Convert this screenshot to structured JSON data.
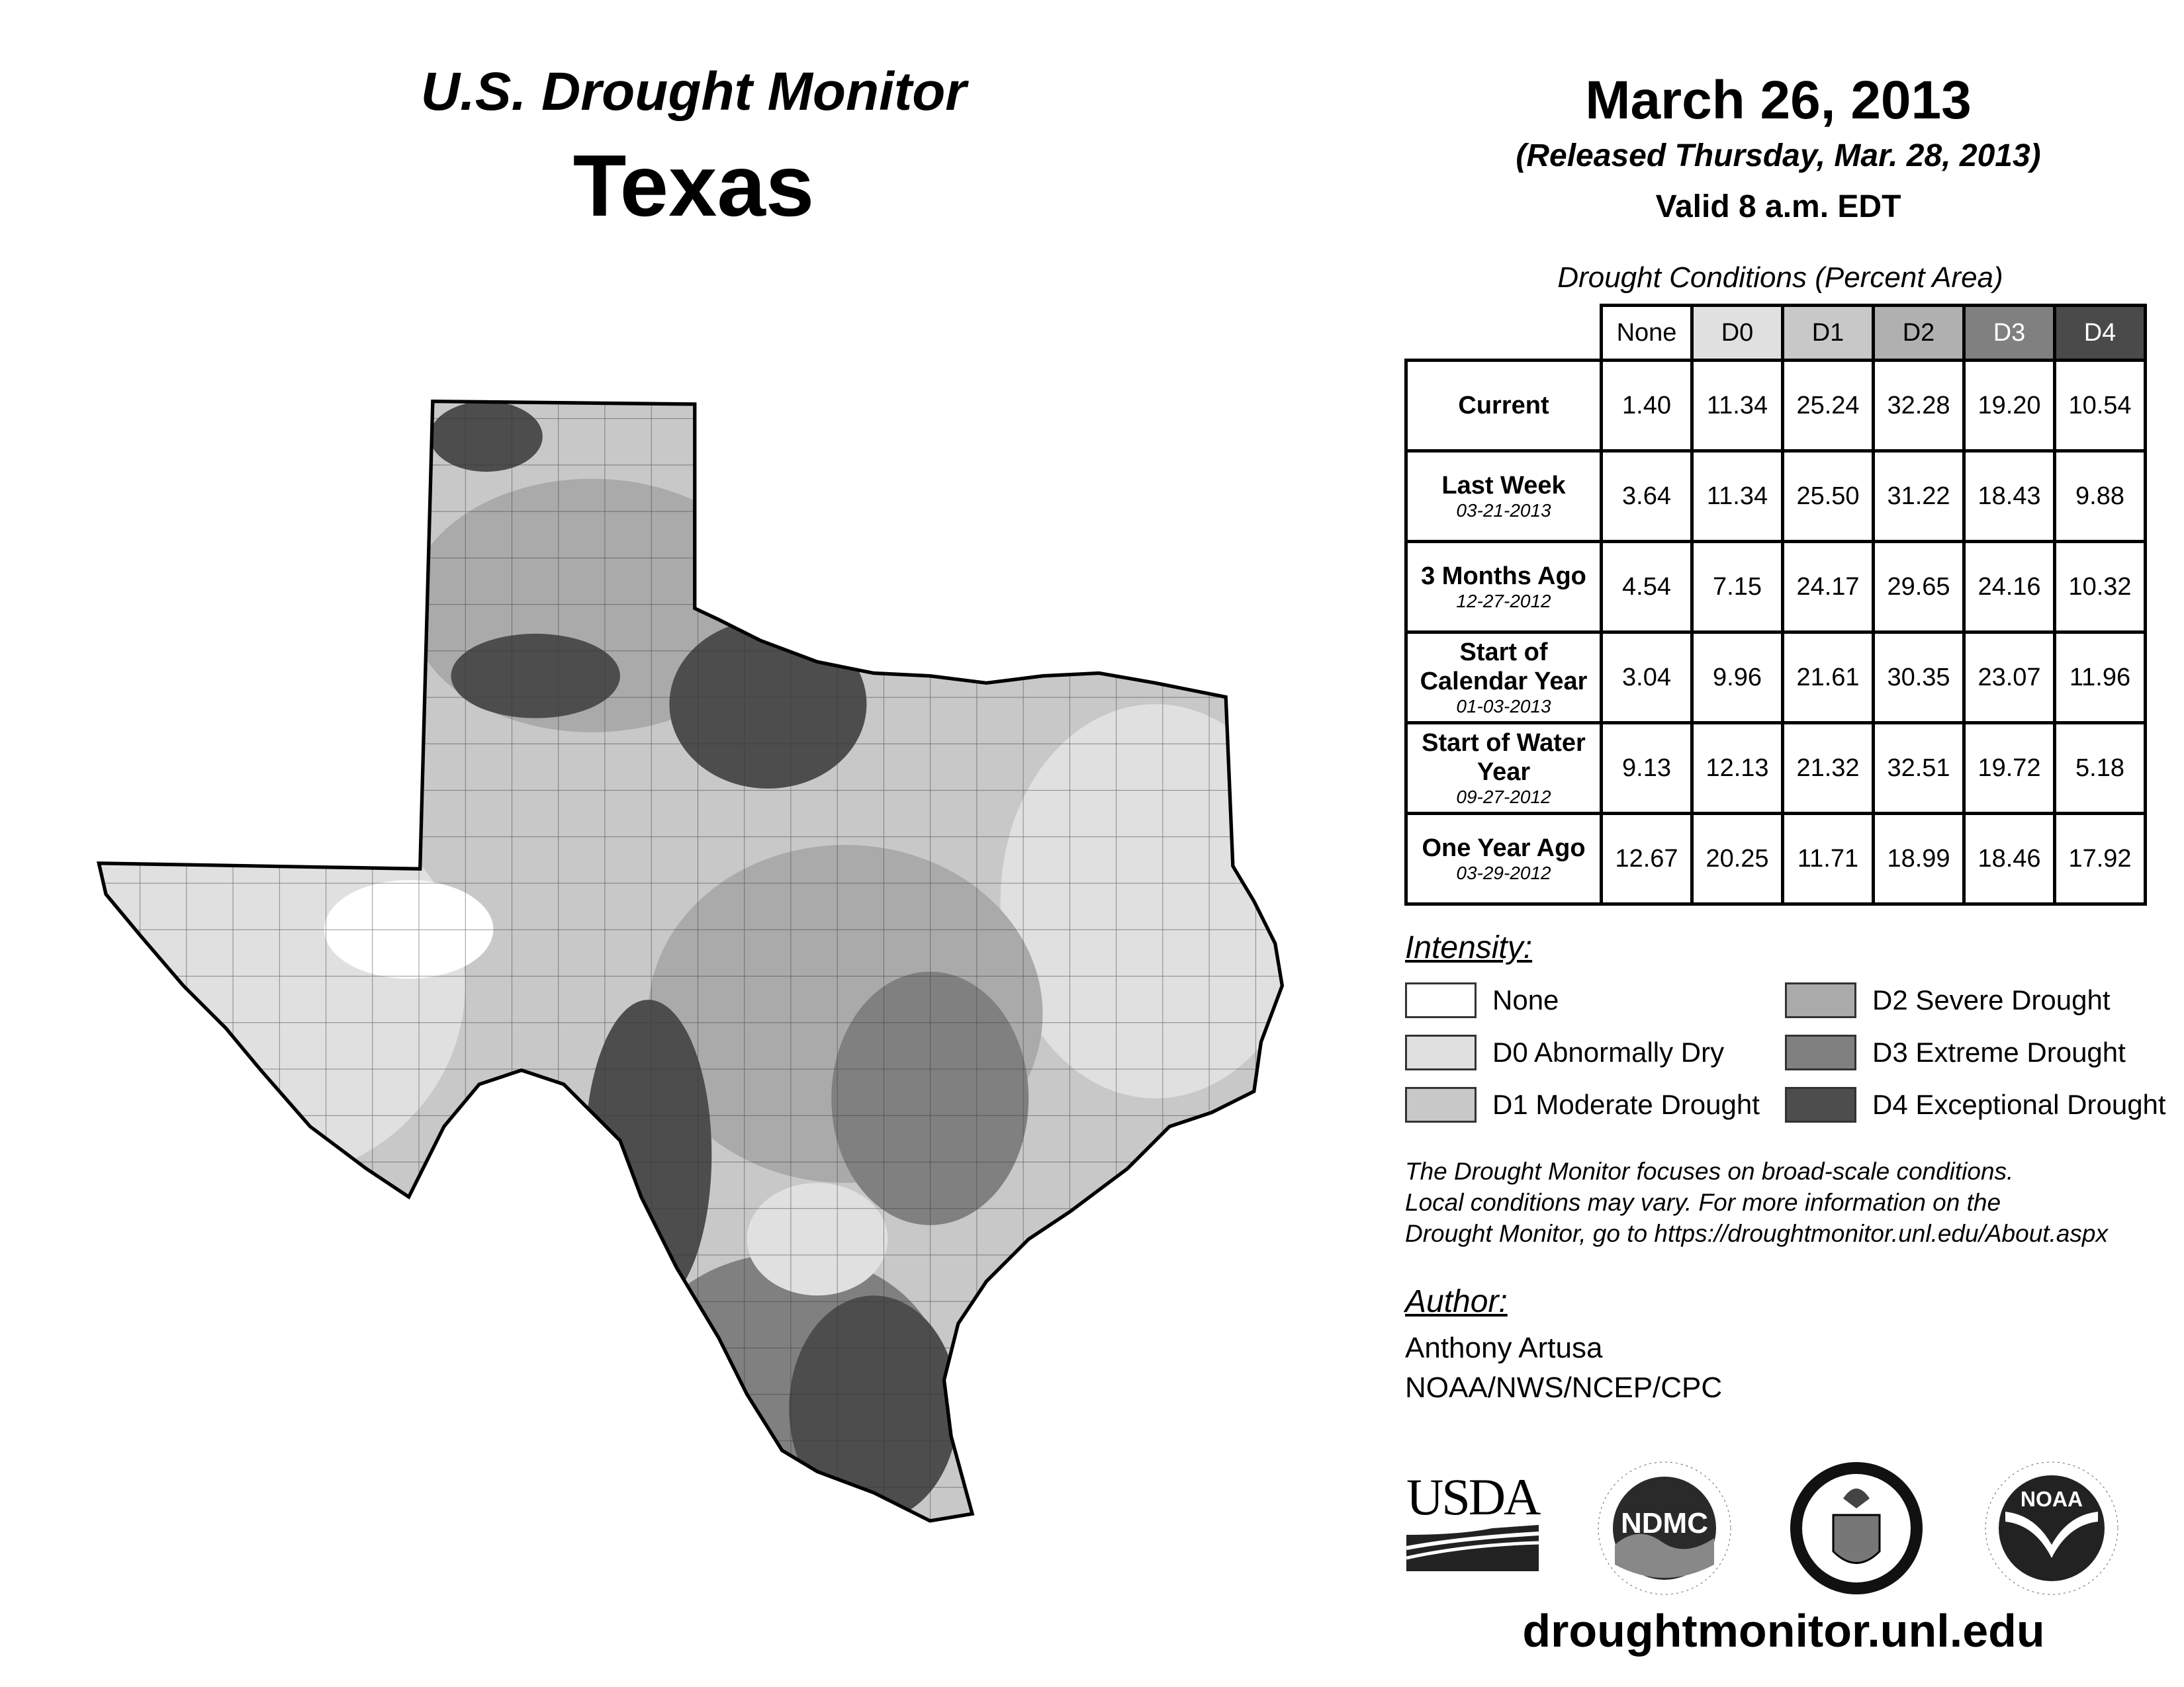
{
  "header": {
    "title": "U.S. Drought Monitor",
    "state": "Texas",
    "date": "March 26, 2013",
    "released": "(Released Thursday, Mar. 28, 2013)",
    "valid": "Valid 8 a.m. EDT"
  },
  "table": {
    "caption": "Drought Conditions (Percent Area)",
    "columns": [
      "None",
      "D0",
      "D1",
      "D2",
      "D3",
      "D4"
    ],
    "column_colors": [
      "#ffffff",
      "#e0e0e0",
      "#c8c8c8",
      "#b0b0b0",
      "#808080",
      "#4a4a4a"
    ],
    "rows": [
      {
        "label": "Current",
        "date": "",
        "values": [
          "1.40",
          "11.34",
          "25.24",
          "32.28",
          "19.20",
          "10.54"
        ]
      },
      {
        "label": "Last Week",
        "date": "03-21-2013",
        "values": [
          "3.64",
          "11.34",
          "25.50",
          "31.22",
          "18.43",
          "9.88"
        ]
      },
      {
        "label": "3 Months Ago",
        "date": "12-27-2012",
        "values": [
          "4.54",
          "7.15",
          "24.17",
          "29.65",
          "24.16",
          "10.32"
        ]
      },
      {
        "label": "Start of Calendar Year",
        "date": "01-03-2013",
        "values": [
          "3.04",
          "9.96",
          "21.61",
          "30.35",
          "23.07",
          "11.96"
        ]
      },
      {
        "label": "Start of Water Year",
        "date": "09-27-2012",
        "values": [
          "9.13",
          "12.13",
          "21.32",
          "32.51",
          "19.72",
          "5.18"
        ]
      },
      {
        "label": "One Year Ago",
        "date": "03-29-2012",
        "values": [
          "12.67",
          "20.25",
          "11.71",
          "18.99",
          "18.46",
          "17.92"
        ]
      }
    ]
  },
  "legend": {
    "title": "Intensity:",
    "items": [
      {
        "label": "None",
        "color": "#ffffff"
      },
      {
        "label": "D0 Abnormally Dry",
        "color": "#e0e0e0"
      },
      {
        "label": "D1 Moderate Drought",
        "color": "#c8c8c8"
      },
      {
        "label": "D2 Severe Drought",
        "color": "#aaaaaa"
      },
      {
        "label": "D3 Extreme Drought",
        "color": "#808080"
      },
      {
        "label": "D4 Exceptional Drought",
        "color": "#4d4d4d"
      }
    ]
  },
  "note": [
    "The Drought Monitor focuses on broad-scale conditions.",
    "Local conditions may vary. For more information on the",
    "Drought Monitor, go to https://droughtmonitor.unl.edu/About.aspx"
  ],
  "author": {
    "label": "Author:",
    "name": "Anthony Artusa",
    "org": "NOAA/NWS/NCEP/CPC"
  },
  "logos": {
    "usda": "USDA",
    "ndmc": "NDMC",
    "ndmc_ring": "NATIONAL DROUGHT MITIGATION CENTER · UNIVERSITY OF NEBRASKA",
    "doc_ring": "DEPARTMENT OF COMMERCE · UNITED STATES OF AMERICA",
    "noaa": "NOAA",
    "noaa_ring": "NATIONAL OCEANIC AND ATMOSPHERIC ADMINISTRATION · U.S. DEPARTMENT OF COMMERCE"
  },
  "url": "droughtmonitor.unl.edu"
}
